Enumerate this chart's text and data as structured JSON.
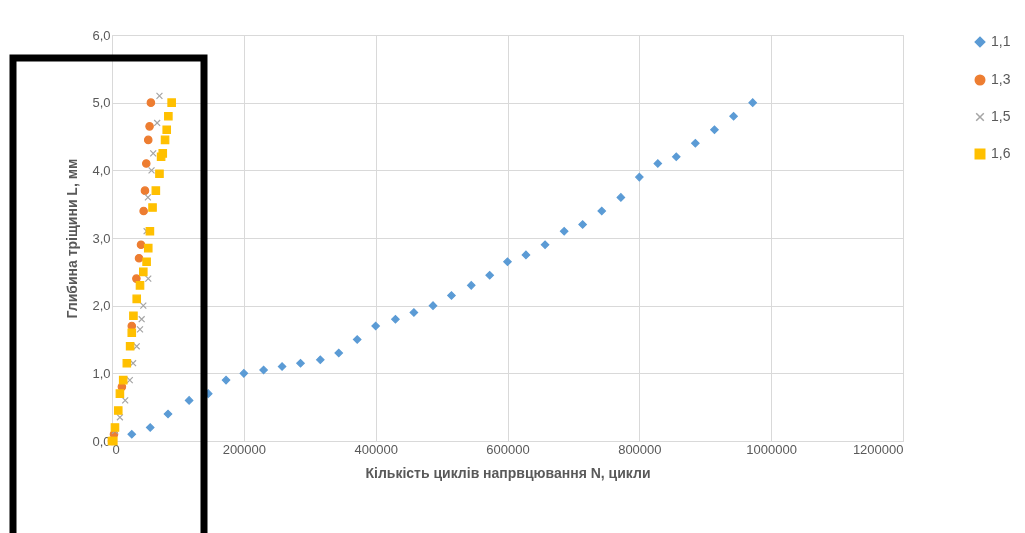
{
  "chart_data": {
    "type": "scatter",
    "xlabel": "Кількість циклів напрвцювання N, цикли",
    "ylabel": "Глибина тріщини L, мм",
    "xlim": [
      0,
      1200000
    ],
    "xticks": [
      0,
      200000,
      400000,
      600000,
      800000,
      1000000,
      1200000
    ],
    "ylim": [
      0,
      6
    ],
    "yticks": [
      {
        "value": 0,
        "label": "0,0"
      },
      {
        "value": 1,
        "label": "1,0"
      },
      {
        "value": 2,
        "label": "2,0"
      },
      {
        "value": 3,
        "label": "3,0"
      },
      {
        "value": 4,
        "label": "4,0"
      },
      {
        "value": 5,
        "label": "5,0"
      },
      {
        "value": 6,
        "label": "6,0"
      }
    ],
    "grid": true,
    "legend": "right",
    "series": [
      {
        "name": "1,1",
        "color": "#5b9bd5",
        "marker": "diamond",
        "x": [
          30000,
          58000,
          85000,
          117000,
          146000,
          173000,
          200000,
          230000,
          258000,
          286000,
          316000,
          344000,
          372000,
          400000,
          430000,
          458000,
          487000,
          515000,
          545000,
          573000,
          600000,
          628000,
          657000,
          686000,
          714000,
          743000,
          772000,
          800000,
          828000,
          856000,
          885000,
          914000,
          943000,
          972000
        ],
        "values": [
          0.1,
          0.2,
          0.4,
          0.6,
          0.7,
          0.9,
          1.0,
          1.05,
          1.1,
          1.15,
          1.2,
          1.3,
          1.5,
          1.7,
          1.8,
          1.9,
          2.0,
          2.15,
          2.3,
          2.45,
          2.65,
          2.75,
          2.9,
          3.1,
          3.2,
          3.4,
          3.6,
          3.9,
          4.1,
          4.2,
          4.4,
          4.6,
          4.8,
          5.0
        ]
      },
      {
        "name": "1,3",
        "color": "#ed7d31",
        "marker": "circle",
        "x": [
          0,
          3000,
          15000,
          30000,
          37000,
          41000,
          44000,
          48000,
          50000,
          52000,
          55000,
          57000,
          59000
        ],
        "values": [
          0.0,
          0.1,
          0.8,
          1.7,
          2.4,
          2.7,
          2.9,
          3.4,
          3.7,
          4.1,
          4.45,
          4.65,
          5.0
        ]
      },
      {
        "name": "1,5",
        "color": "#a5a5a5",
        "marker": "cross",
        "x": [
          4500,
          12000,
          20000,
          27000,
          32000,
          37500,
          42500,
          45000,
          47500,
          55000,
          52500,
          54500,
          60000,
          62500,
          68500,
          72000
        ],
        "values": [
          0.15,
          0.35,
          0.6,
          0.9,
          1.15,
          1.4,
          1.65,
          1.8,
          2.0,
          2.4,
          3.1,
          3.6,
          4.0,
          4.25,
          4.7,
          5.1
        ]
      },
      {
        "name": "1,6",
        "color": "#ffc000",
        "marker": "square",
        "x": [
          0,
          2000,
          4500,
          9500,
          12000,
          17000,
          22500,
          27500,
          30000,
          32500,
          37500,
          42500,
          47500,
          52500,
          55000,
          57500,
          61500,
          66500,
          72000,
          74500,
          77000,
          80500,
          83000,
          85500,
          90500
        ],
        "values": [
          0.0,
          0.0,
          0.2,
          0.45,
          0.7,
          0.9,
          1.15,
          1.4,
          1.6,
          1.85,
          2.1,
          2.3,
          2.5,
          2.65,
          2.85,
          3.1,
          3.45,
          3.7,
          3.95,
          4.2,
          4.25,
          4.45,
          4.6,
          4.8,
          5.0
        ]
      }
    ]
  }
}
